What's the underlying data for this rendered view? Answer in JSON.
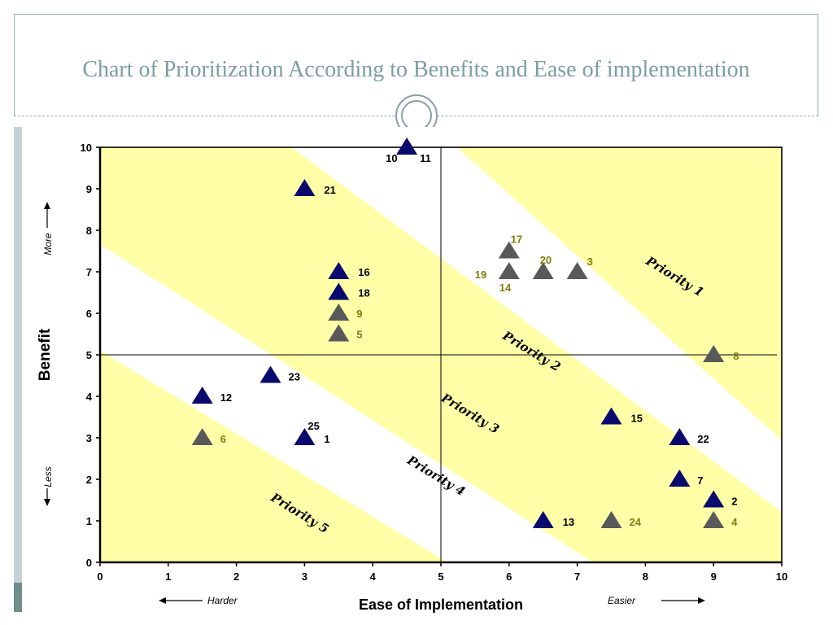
{
  "slide": {
    "title": "Chart of Prioritization According to Benefits and Ease of implementation"
  },
  "colors": {
    "band_fill": "#ffffa8",
    "navy_marker": "#0a0a6e",
    "gray_marker": "#595959",
    "label_navy": "#000000",
    "label_olive": "#7d7d10"
  },
  "chart_data": {
    "type": "scatter",
    "title": "",
    "xlabel": "Ease of Implementation",
    "ylabel": "Benefit",
    "xlim": [
      0,
      10
    ],
    "ylim": [
      0,
      10
    ],
    "x_ticks": [
      "0",
      "1",
      "2",
      "3",
      "4",
      "5",
      "6",
      "7",
      "8",
      "9",
      "10"
    ],
    "y_ticks": [
      "0",
      "1",
      "2",
      "3",
      "4",
      "5",
      "6",
      "7",
      "8",
      "9",
      "10"
    ],
    "quadrant_lines": {
      "x": 5,
      "y": 5
    },
    "marker": "triangle",
    "direction_labels": {
      "x_low": "Harder",
      "x_high": "Easier",
      "y_high": "More",
      "y_low": "Less"
    },
    "zones": [
      {
        "label": "Priority 1",
        "x": 8.4,
        "y": 6.8
      },
      {
        "label": "Priority 2",
        "x": 6.3,
        "y": 5.0
      },
      {
        "label": "Priority 3",
        "x": 5.4,
        "y": 3.5
      },
      {
        "label": "Priority 4",
        "x": 4.9,
        "y": 2.0
      },
      {
        "label": "Priority 5",
        "x": 2.9,
        "y": 1.1
      }
    ],
    "points": [
      {
        "x": 4.5,
        "y": 10,
        "color": "navy",
        "labels": [
          {
            "text": "10",
            "dx": -26,
            "dy": 18
          },
          {
            "text": "11",
            "dx": 16,
            "dy": 18
          }
        ]
      },
      {
        "x": 3.0,
        "y": 9,
        "color": "navy",
        "labels": [
          {
            "text": "21",
            "dx": 24,
            "dy": 6
          }
        ]
      },
      {
        "x": 3.5,
        "y": 7,
        "color": "navy",
        "labels": [
          {
            "text": "16",
            "dx": 24,
            "dy": 5
          }
        ]
      },
      {
        "x": 3.5,
        "y": 6.5,
        "color": "navy",
        "labels": [
          {
            "text": "18",
            "dx": 24,
            "dy": 5
          }
        ]
      },
      {
        "x": 3.5,
        "y": 6,
        "color": "gray",
        "labels": [
          {
            "text": "9",
            "dx": 22,
            "dy": 5
          }
        ]
      },
      {
        "x": 3.5,
        "y": 5.5,
        "color": "gray",
        "labels": [
          {
            "text": "5",
            "dx": 22,
            "dy": 5
          }
        ]
      },
      {
        "x": 6.0,
        "y": 7.5,
        "color": "gray",
        "labels": [
          {
            "text": "17",
            "dx": 2,
            "dy": -10
          }
        ]
      },
      {
        "x": 6.0,
        "y": 7,
        "color": "gray",
        "labels": [
          {
            "text": "19",
            "dx": -42,
            "dy": 8
          },
          {
            "text": "14",
            "dx": -12,
            "dy": 24
          }
        ]
      },
      {
        "x": 6.5,
        "y": 7,
        "color": "gray",
        "labels": [
          {
            "text": "20",
            "dx": -4,
            "dy": -10
          }
        ]
      },
      {
        "x": 7.0,
        "y": 7,
        "color": "gray",
        "labels": [
          {
            "text": "3",
            "dx": 12,
            "dy": -8
          }
        ]
      },
      {
        "x": 9.0,
        "y": 5,
        "color": "gray",
        "labels": [
          {
            "text": "8",
            "dx": 24,
            "dy": 6
          }
        ]
      },
      {
        "x": 2.5,
        "y": 4.5,
        "color": "navy",
        "labels": [
          {
            "text": "23",
            "dx": 22,
            "dy": 6
          }
        ]
      },
      {
        "x": 1.5,
        "y": 4,
        "color": "navy",
        "labels": [
          {
            "text": "12",
            "dx": 22,
            "dy": 6
          }
        ]
      },
      {
        "x": 1.5,
        "y": 3,
        "color": "gray",
        "labels": [
          {
            "text": "6",
            "dx": 22,
            "dy": 6
          }
        ]
      },
      {
        "x": 3.0,
        "y": 3,
        "color": "navy",
        "labels": [
          {
            "text": "1",
            "dx": 24,
            "dy": 6
          },
          {
            "text": "25",
            "dx": 4,
            "dy": -10
          }
        ]
      },
      {
        "x": 7.5,
        "y": 3.5,
        "color": "navy",
        "labels": [
          {
            "text": "15",
            "dx": 24,
            "dy": 6
          }
        ]
      },
      {
        "x": 8.5,
        "y": 3,
        "color": "navy",
        "labels": [
          {
            "text": "22",
            "dx": 22,
            "dy": 6
          }
        ]
      },
      {
        "x": 8.5,
        "y": 2,
        "color": "navy",
        "labels": [
          {
            "text": "7",
            "dx": 22,
            "dy": 6
          }
        ]
      },
      {
        "x": 9.0,
        "y": 1.5,
        "color": "navy",
        "labels": [
          {
            "text": "2",
            "dx": 22,
            "dy": 6
          }
        ]
      },
      {
        "x": 9.0,
        "y": 1,
        "color": "gray",
        "labels": [
          {
            "text": "4",
            "dx": 22,
            "dy": 6
          }
        ]
      },
      {
        "x": 6.5,
        "y": 1,
        "color": "navy",
        "labels": [
          {
            "text": "13",
            "dx": 24,
            "dy": 6
          }
        ]
      },
      {
        "x": 7.5,
        "y": 1,
        "color": "gray",
        "labels": [
          {
            "text": "24",
            "dx": 22,
            "dy": 6
          }
        ]
      }
    ]
  }
}
